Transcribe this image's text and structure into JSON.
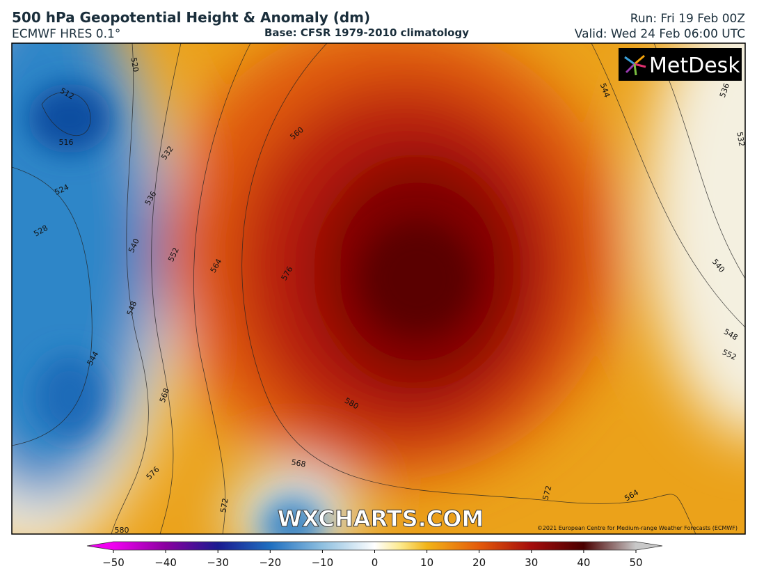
{
  "header": {
    "title": "500 hPa Geopotential Height & Anomaly (dm)",
    "model": "ECMWF HRES 0.1°",
    "base": "Base: CFSR 1979-2010 climatology",
    "run": "Run: Fri 19 Feb 00Z",
    "valid": "Valid: Wed 24 Feb 06:00 UTC"
  },
  "logo": "MetDesk",
  "watermark": "WXCHARTS.COM",
  "copyright": "©2021 European Centre for Medium-range Weather Forecasts (ECMWF)",
  "contour_labels": [
    520,
    512,
    516,
    524,
    528,
    532,
    536,
    540,
    548,
    544,
    552,
    560,
    564,
    568,
    576,
    580,
    580,
    568,
    572,
    572,
    564,
    544,
    536,
    532,
    540,
    548,
    552,
    576
  ],
  "colorbar": {
    "lim": [
      -50,
      50
    ],
    "ticks": [
      {
        "value": -50,
        "label": "−50"
      },
      {
        "value": -40,
        "label": "−40"
      },
      {
        "value": -30,
        "label": "−30"
      },
      {
        "value": -20,
        "label": "−20"
      },
      {
        "value": -10,
        "label": "−10"
      },
      0,
      10,
      20,
      30,
      40,
      50
    ]
  }
}
